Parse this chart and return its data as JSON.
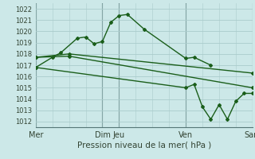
{
  "title": "Pression niveau de la mer( hPa )",
  "bg_color": "#cce8e8",
  "grid_color": "#aacccc",
  "line_color": "#1a5e1a",
  "ylim": [
    1011.5,
    1022.5
  ],
  "yticks": [
    1012,
    1013,
    1014,
    1015,
    1016,
    1017,
    1018,
    1019,
    1020,
    1021,
    1022
  ],
  "vline_color": "#557777",
  "x_named_positions": [
    0,
    8,
    10,
    18,
    26
  ],
  "x_named_labels": [
    "Mer",
    "Dim",
    "Jeu",
    "Ven",
    "Sam"
  ],
  "xlim": [
    0,
    26
  ],
  "series1_x": [
    0,
    2,
    3,
    5,
    6,
    7,
    8,
    9,
    10,
    11,
    13,
    18,
    19,
    21
  ],
  "series1_y": [
    1016.8,
    1017.7,
    1018.1,
    1019.4,
    1019.5,
    1018.9,
    1019.1,
    1020.8,
    1021.4,
    1021.5,
    1020.2,
    1017.6,
    1017.7,
    1017.0
  ],
  "series2_x": [
    0,
    4,
    26
  ],
  "series2_y": [
    1017.7,
    1018.0,
    1016.3
  ],
  "series3_x": [
    0,
    4,
    26
  ],
  "series3_y": [
    1017.7,
    1017.8,
    1015.0
  ],
  "series4_x": [
    0,
    18,
    19,
    20,
    21,
    22,
    23,
    24,
    25,
    26
  ],
  "series4_y": [
    1016.8,
    1015.0,
    1015.3,
    1013.3,
    1012.2,
    1013.5,
    1012.2,
    1013.8,
    1014.5,
    1014.5
  ],
  "minor_xticks": [
    0,
    2,
    4,
    6,
    8,
    10,
    12,
    14,
    16,
    18,
    20,
    22,
    24,
    26
  ],
  "marker": "D",
  "marker_size": 2.0,
  "ytick_fontsize": 6.0,
  "xtick_fontsize": 7.0,
  "title_fontsize": 7.5
}
